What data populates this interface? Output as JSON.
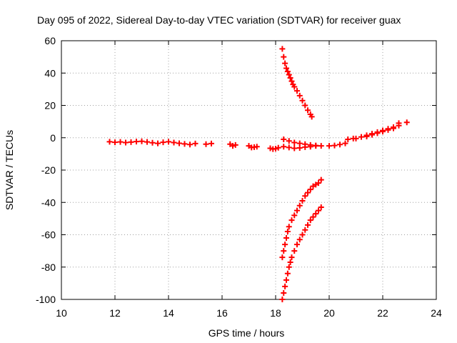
{
  "chart_data": {
    "type": "scatter",
    "title": "Day 095 of 2022, Sidereal Day-to-day VTEC variation (SDTVAR) for receiver guax",
    "xlabel": "GPS time / hours",
    "ylabel": "SDTVAR / TECUs",
    "xlim": [
      10,
      24
    ],
    "ylim": [
      -100,
      60
    ],
    "xticks": [
      "10",
      "12",
      "14",
      "16",
      "18",
      "20",
      "22",
      "24"
    ],
    "yticks": [
      "60",
      "40",
      "20",
      "0",
      "-20",
      "-40",
      "-60",
      "-80",
      "-100"
    ],
    "xtick_values": [
      10,
      12,
      14,
      16,
      18,
      20,
      22,
      24
    ],
    "ytick_values": [
      60,
      40,
      20,
      0,
      -20,
      -40,
      -60,
      -80,
      -100
    ],
    "grid": true,
    "grid_style": "dotted",
    "marker": "+",
    "color": "#ff0000",
    "series": [
      {
        "points": [
          [
            11.8,
            -2.5
          ],
          [
            12.0,
            -2.8
          ],
          [
            12.2,
            -2.6
          ],
          [
            12.4,
            -3.0
          ],
          [
            12.6,
            -2.7
          ],
          [
            12.8,
            -2.4
          ],
          [
            13.0,
            -2.2
          ],
          [
            13.2,
            -2.6
          ],
          [
            13.4,
            -3.1
          ],
          [
            13.6,
            -3.5
          ],
          [
            13.8,
            -2.8
          ],
          [
            14.0,
            -2.5
          ],
          [
            14.2,
            -3.0
          ],
          [
            14.4,
            -3.4
          ],
          [
            14.6,
            -3.8
          ],
          [
            14.8,
            -4.2
          ],
          [
            15.0,
            -3.6
          ],
          [
            15.4,
            -4.0
          ],
          [
            15.6,
            -3.6
          ],
          [
            16.3,
            -4.0
          ],
          [
            16.4,
            -5.0
          ],
          [
            16.5,
            -4.5
          ],
          [
            17.0,
            -5.0
          ],
          [
            17.1,
            -6.0
          ],
          [
            17.2,
            -5.8
          ],
          [
            17.3,
            -5.5
          ],
          [
            17.8,
            -6.5
          ],
          [
            17.9,
            -7.0
          ],
          [
            18.0,
            -6.8
          ],
          [
            18.1,
            -6.2
          ],
          [
            18.3,
            -5.5
          ],
          [
            18.5,
            -6.0
          ],
          [
            18.7,
            -6.5
          ],
          [
            18.9,
            -6.3
          ],
          [
            19.1,
            -5.8
          ],
          [
            19.3,
            -5.5
          ],
          [
            19.5,
            -5.0
          ],
          [
            18.3,
            -1.0
          ],
          [
            18.5,
            -2.0
          ],
          [
            18.7,
            -3.0
          ],
          [
            18.9,
            -3.5
          ],
          [
            19.1,
            -4.0
          ],
          [
            19.3,
            -4.5
          ],
          [
            19.5,
            -4.8
          ],
          [
            19.7,
            -5.0
          ],
          [
            20.0,
            -5.0
          ],
          [
            20.2,
            -4.8
          ],
          [
            20.4,
            -4.2
          ],
          [
            20.6,
            -3.5
          ],
          [
            20.7,
            -1.0
          ],
          [
            20.9,
            -0.5
          ],
          [
            21.0,
            -0.5
          ],
          [
            21.2,
            0.5
          ],
          [
            21.4,
            1.5
          ],
          [
            21.6,
            2.5
          ],
          [
            21.8,
            3.5
          ],
          [
            22.0,
            4.5
          ],
          [
            22.2,
            5.5
          ],
          [
            22.4,
            6.5
          ],
          [
            22.6,
            7.5
          ],
          [
            21.4,
            0.8
          ],
          [
            21.6,
            1.8
          ],
          [
            21.8,
            2.8
          ],
          [
            22.0,
            3.8
          ],
          [
            22.2,
            4.8
          ],
          [
            22.4,
            5.8
          ],
          [
            22.6,
            9.0
          ],
          [
            22.9,
            9.5
          ]
        ]
      },
      {
        "points": [
          [
            18.25,
            55
          ],
          [
            18.3,
            50
          ],
          [
            18.35,
            46
          ],
          [
            18.4,
            43
          ],
          [
            18.45,
            41
          ],
          [
            18.5,
            39
          ],
          [
            18.55,
            37
          ],
          [
            18.6,
            35
          ],
          [
            18.65,
            33
          ],
          [
            18.7,
            31.5
          ],
          [
            18.8,
            29
          ],
          [
            18.9,
            26
          ],
          [
            19.0,
            23
          ],
          [
            19.1,
            20
          ],
          [
            19.2,
            17
          ],
          [
            19.3,
            14.5
          ],
          [
            19.35,
            13
          ]
        ]
      },
      {
        "points": [
          [
            18.25,
            -74
          ],
          [
            18.3,
            -70
          ],
          [
            18.35,
            -66
          ],
          [
            18.4,
            -62
          ],
          [
            18.45,
            -58
          ],
          [
            18.5,
            -55
          ],
          [
            18.6,
            -51
          ],
          [
            18.7,
            -48
          ],
          [
            18.8,
            -45
          ],
          [
            18.9,
            -42
          ],
          [
            19.0,
            -39
          ],
          [
            19.1,
            -36
          ],
          [
            19.2,
            -34
          ],
          [
            19.3,
            -32
          ],
          [
            19.4,
            -30
          ],
          [
            19.5,
            -29
          ],
          [
            19.6,
            -28
          ],
          [
            19.7,
            -26
          ]
        ]
      },
      {
        "points": [
          [
            18.25,
            -100
          ],
          [
            18.3,
            -96
          ],
          [
            18.35,
            -92
          ],
          [
            18.4,
            -88
          ],
          [
            18.45,
            -84
          ],
          [
            18.5,
            -80
          ],
          [
            18.55,
            -77
          ],
          [
            18.6,
            -74
          ],
          [
            18.7,
            -70
          ],
          [
            18.8,
            -66
          ],
          [
            18.9,
            -63
          ],
          [
            19.0,
            -60
          ],
          [
            19.1,
            -57
          ],
          [
            19.2,
            -54
          ],
          [
            19.3,
            -51
          ],
          [
            19.4,
            -49
          ],
          [
            19.5,
            -47
          ],
          [
            19.6,
            -45
          ],
          [
            19.7,
            -43
          ]
        ]
      }
    ]
  }
}
